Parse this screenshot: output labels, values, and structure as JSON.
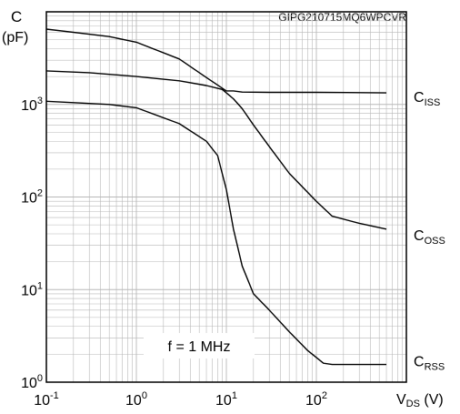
{
  "chart_data": {
    "type": "line",
    "code": "GIPG210715MQ6WPCVR",
    "ylabel": {
      "main": "C",
      "unit": "(pF)"
    },
    "xlabel": {
      "main": "V",
      "sub": "DS",
      "unit": " (V)"
    },
    "x_scale": "log",
    "y_scale": "log",
    "xlim": [
      0.1,
      1000
    ],
    "ylim": [
      1,
      10000
    ],
    "x_ticks": [
      {
        "value": 0.1,
        "base": "10",
        "exp": "-1"
      },
      {
        "value": 1,
        "base": "10",
        "exp": "0"
      },
      {
        "value": 10,
        "base": "10",
        "exp": "1"
      },
      {
        "value": 100,
        "base": "10",
        "exp": "2"
      }
    ],
    "y_ticks": [
      {
        "value": 1,
        "base": "10",
        "exp": "0"
      },
      {
        "value": 10,
        "base": "10",
        "exp": "1"
      },
      {
        "value": 100,
        "base": "10",
        "exp": "2"
      },
      {
        "value": 1000,
        "base": "10",
        "exp": "3"
      }
    ],
    "grid": true,
    "annotation": "f = 1 MHz",
    "series": [
      {
        "name": "C",
        "sub": "ISS",
        "x": [
          0.1,
          0.5,
          1,
          3,
          6,
          10,
          12,
          15,
          30,
          100,
          300,
          600
        ],
        "y": [
          6500,
          5400,
          4700,
          3100,
          1950,
          1400,
          1400,
          1360,
          1350,
          1350,
          1340,
          1330
        ]
      },
      {
        "name": "C",
        "sub": "OSS",
        "x": [
          0.1,
          0.3,
          1,
          3,
          6,
          9,
          12,
          15,
          20,
          30,
          50,
          100,
          150,
          300,
          600
        ],
        "y": [
          2300,
          2200,
          2000,
          1800,
          1600,
          1450,
          1150,
          900,
          600,
          350,
          180,
          90,
          62,
          52,
          45
        ]
      },
      {
        "name": "C",
        "sub": "RSS",
        "x": [
          0.1,
          0.5,
          1,
          3,
          6,
          8,
          10,
          12,
          15,
          20,
          30,
          50,
          80,
          120,
          150,
          200,
          600
        ],
        "y": [
          1080,
          1000,
          920,
          620,
          400,
          280,
          120,
          45,
          18,
          9,
          6,
          3.5,
          2.2,
          1.6,
          1.55,
          1.55,
          1.55
        ]
      }
    ]
  }
}
